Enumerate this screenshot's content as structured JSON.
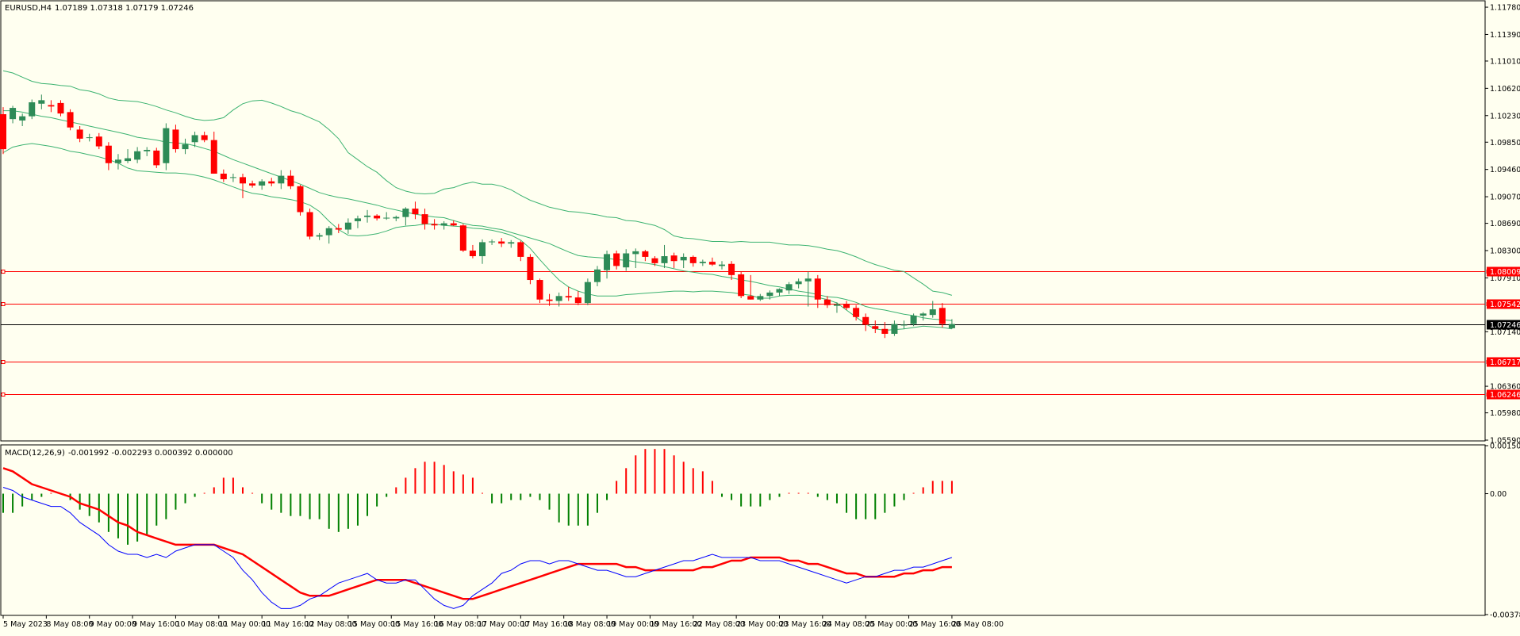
{
  "header": {
    "symbol_label": "EURUSD,H4",
    "ohlc": "1.07189 1.07318 1.07179 1.07246"
  },
  "macd_header": {
    "label": "MACD(12,26,9)",
    "values": "-0.001992 -0.002293 0.000392 0.000000"
  },
  "colors": {
    "background": "#fffff0",
    "bull": "#2e8b57",
    "bear": "#ff0000",
    "bands": "#3cb371",
    "hline": "#ff0000",
    "current_line": "#000000",
    "macd_line": "#0000ff",
    "signal_line": "#ff0000"
  },
  "price_axis_ticks": [
    "1.11780",
    "1.11390",
    "1.11010",
    "1.10620",
    "1.10230",
    "1.09850",
    "1.09460",
    "1.09070",
    "1.08690",
    "1.08300",
    "1.07910",
    "1.07140",
    "1.06360",
    "1.05980",
    "1.05590"
  ],
  "macd_axis_ticks": [
    "0.001504",
    "0.00",
    "-0.003789"
  ],
  "price_tags": [
    {
      "label": "1.08009",
      "value": 1.08009
    },
    {
      "label": "1.07542",
      "value": 1.07542
    },
    {
      "label": "1.06717",
      "value": 1.06717
    },
    {
      "label": "1.06246",
      "value": 1.06246
    }
  ],
  "current_price_tag": {
    "label": "1.07246",
    "value": 1.07246
  },
  "time_axis_labels": [
    "5 May 2023",
    "8 May 08:00",
    "9 May 00:00",
    "9 May 16:00",
    "10 May 08:00",
    "11 May 00:00",
    "11 May 16:00",
    "12 May 08:00",
    "15 May 00:00",
    "15 May 16:00",
    "16 May 08:00",
    "17 May 00:00",
    "17 May 16:00",
    "18 May 08:00",
    "19 May 00:00",
    "19 May 16:00",
    "22 May 08:00",
    "23 May 00:00",
    "23 May 16:00",
    "24 May 08:00",
    "25 May 00:00",
    "25 May 16:00",
    "26 May 08:00"
  ],
  "chart_data": {
    "type": "candlestick",
    "symbol": "EURUSD",
    "timeframe": "H4",
    "price_range": [
      1.0559,
      1.1186
    ],
    "candles": [
      [
        1.1025,
        1.1035,
        1.0968,
        1.0975
      ],
      [
        1.1018,
        1.1037,
        1.1012,
        1.1034
      ],
      [
        1.1016,
        1.1026,
        1.1008,
        1.1022
      ],
      [
        1.1022,
        1.1046,
        1.1018,
        1.1042
      ],
      [
        1.104,
        1.1053,
        1.1032,
        1.1045
      ],
      [
        1.1038,
        1.1045,
        1.1028,
        1.1036
      ],
      [
        1.1041,
        1.1045,
        1.1022,
        1.1026
      ],
      [
        1.1028,
        1.1032,
        1.1002,
        1.1006
      ],
      [
        1.1003,
        1.1008,
        1.0985,
        1.099
      ],
      [
        1.0991,
        1.0997,
        1.0986,
        1.0992
      ],
      [
        1.0993,
        1.0998,
        1.0975,
        1.0979
      ],
      [
        1.098,
        1.0985,
        1.0945,
        1.0955
      ],
      [
        1.0955,
        1.0968,
        1.0946,
        1.096
      ],
      [
        1.0958,
        1.0975,
        1.0955,
        1.0962
      ],
      [
        1.096,
        1.0978,
        1.0955,
        1.0972
      ],
      [
        1.0972,
        1.0978,
        1.0965,
        1.0974
      ],
      [
        1.0973,
        1.0977,
        1.0948,
        1.0952
      ],
      [
        1.0955,
        1.1012,
        1.0945,
        1.1005
      ],
      [
        1.1003,
        1.101,
        1.097,
        1.0975
      ],
      [
        1.0975,
        1.099,
        1.0968,
        1.0982
      ],
      [
        1.0985,
        1.1,
        1.0978,
        1.0995
      ],
      [
        1.0995,
        1.1,
        1.0985,
        1.0988
      ],
      [
        1.0988,
        1.1,
        1.094,
        1.094
      ],
      [
        1.094,
        1.0946,
        1.0928,
        1.0932
      ],
      [
        1.0935,
        1.094,
        1.0928,
        1.0935
      ],
      [
        1.0935,
        1.094,
        1.0905,
        1.0926
      ],
      [
        1.0926,
        1.093,
        1.092,
        1.0923
      ],
      [
        1.0923,
        1.0932,
        1.0917,
        1.0929
      ],
      [
        1.0929,
        1.0934,
        1.0922,
        1.0926
      ],
      [
        1.0926,
        1.0945,
        1.0918,
        1.0937
      ],
      [
        1.0937,
        1.0945,
        1.0918,
        1.0922
      ],
      [
        1.0922,
        1.0924,
        1.088,
        1.0885
      ],
      [
        1.0885,
        1.089,
        1.0846,
        1.085
      ],
      [
        1.085,
        1.0855,
        1.0845,
        1.0852
      ],
      [
        1.0852,
        1.0865,
        1.084,
        1.0862
      ],
      [
        1.0862,
        1.0868,
        1.0855,
        1.086
      ],
      [
        1.086,
        1.0876,
        1.0854,
        1.087
      ],
      [
        1.0872,
        1.088,
        1.0862,
        1.0876
      ],
      [
        1.0878,
        1.0888,
        1.087,
        1.088
      ],
      [
        1.088,
        1.0882,
        1.0873,
        1.0876
      ],
      [
        1.0876,
        1.0885,
        1.0874,
        1.0877
      ],
      [
        1.0876,
        1.088,
        1.0872,
        1.0878
      ],
      [
        1.0878,
        1.0892,
        1.0866,
        1.089
      ],
      [
        1.089,
        1.09,
        1.0875,
        1.0882
      ],
      [
        1.0882,
        1.089,
        1.086,
        1.0868
      ],
      [
        1.0868,
        1.0875,
        1.086,
        1.0866
      ],
      [
        1.0866,
        1.0872,
        1.086,
        1.0869
      ],
      [
        1.0869,
        1.0873,
        1.0865,
        1.0866
      ],
      [
        1.0866,
        1.0868,
        1.0828,
        1.083
      ],
      [
        1.083,
        1.0838,
        1.0819,
        1.0822
      ],
      [
        1.0822,
        1.0846,
        1.0811,
        1.0842
      ],
      [
        1.0842,
        1.0846,
        1.0838,
        1.0843
      ],
      [
        1.0843,
        1.0848,
        1.0835,
        1.084
      ],
      [
        1.084,
        1.0845,
        1.0834,
        1.0842
      ],
      [
        1.0842,
        1.0844,
        1.0815,
        1.0821
      ],
      [
        1.0821,
        1.0825,
        1.0782,
        1.0788
      ],
      [
        1.0788,
        1.079,
        1.0755,
        1.076
      ],
      [
        1.076,
        1.0768,
        1.0751,
        1.0758
      ],
      [
        1.0758,
        1.077,
        1.075,
        1.0765
      ],
      [
        1.0765,
        1.0778,
        1.0758,
        1.0763
      ],
      [
        1.0763,
        1.0772,
        1.0752,
        1.0755
      ],
      [
        1.0755,
        1.079,
        1.0752,
        1.0785
      ],
      [
        1.0785,
        1.0808,
        1.0779,
        1.0803
      ],
      [
        1.0802,
        1.083,
        1.079,
        1.0825
      ],
      [
        1.0826,
        1.083,
        1.0803,
        1.0808
      ],
      [
        1.0806,
        1.0832,
        1.0801,
        1.0826
      ],
      [
        1.0825,
        1.0833,
        1.0805,
        1.0829
      ],
      [
        1.0829,
        1.0831,
        1.0815,
        1.0821
      ],
      [
        1.0819,
        1.0822,
        1.0808,
        1.0812
      ],
      [
        1.0812,
        1.0838,
        1.0805,
        1.0822
      ],
      [
        1.0823,
        1.0827,
        1.0805,
        1.0815
      ],
      [
        1.0816,
        1.0826,
        1.0805,
        1.0821
      ],
      [
        1.0821,
        1.0823,
        1.0807,
        1.0812
      ],
      [
        1.0812,
        1.0817,
        1.0808,
        1.0814
      ],
      [
        1.0814,
        1.082,
        1.0808,
        1.081
      ],
      [
        1.0808,
        1.0815,
        1.0803,
        1.081
      ],
      [
        1.0811,
        1.0815,
        1.0788,
        1.0795
      ],
      [
        1.0796,
        1.08,
        1.0762,
        1.0765
      ],
      [
        1.0765,
        1.0795,
        1.076,
        1.076
      ],
      [
        1.076,
        1.0768,
        1.0758,
        1.0765
      ],
      [
        1.0765,
        1.0773,
        1.076,
        1.077
      ],
      [
        1.077,
        1.0776,
        1.0765,
        1.0775
      ],
      [
        1.0773,
        1.0785,
        1.0768,
        1.0782
      ],
      [
        1.0782,
        1.079,
        1.0776,
        1.0786
      ],
      [
        1.0786,
        1.08,
        1.075,
        1.079
      ],
      [
        1.079,
        1.0795,
        1.0748,
        1.076
      ],
      [
        1.076,
        1.0765,
        1.0748,
        1.0752
      ],
      [
        1.0751,
        1.0756,
        1.0741,
        1.0753
      ],
      [
        1.0753,
        1.0758,
        1.0745,
        1.0748
      ],
      [
        1.0748,
        1.0752,
        1.073,
        1.0735
      ],
      [
        1.0735,
        1.074,
        1.0715,
        1.0724
      ],
      [
        1.0722,
        1.073,
        1.0712,
        1.0718
      ],
      [
        1.0718,
        1.0728,
        1.0705,
        1.0711
      ],
      [
        1.0711,
        1.073,
        1.0708,
        1.0725
      ],
      [
        1.0723,
        1.073,
        1.0718,
        1.0724
      ],
      [
        1.0725,
        1.074,
        1.0722,
        1.0737
      ],
      [
        1.0737,
        1.0742,
        1.073,
        1.074
      ],
      [
        1.0738,
        1.0758,
        1.0734,
        1.0746
      ],
      [
        1.0748,
        1.0755,
        1.072,
        1.0725
      ],
      [
        1.0719,
        1.0732,
        1.0718,
        1.0725
      ]
    ],
    "bollinger": {
      "upper": [
        1.1087,
        1.1084,
        1.1078,
        1.1072,
        1.1069,
        1.1068,
        1.1066,
        1.1065,
        1.106,
        1.1058,
        1.1054,
        1.1048,
        1.1045,
        1.1044,
        1.1043,
        1.104,
        1.1036,
        1.1031,
        1.1027,
        1.1022,
        1.1018,
        1.1016,
        1.1017,
        1.102,
        1.1031,
        1.104,
        1.1044,
        1.1045,
        1.1041,
        1.1036,
        1.103,
        1.1026,
        1.102,
        1.1014,
        1.1003,
        1.099,
        1.097,
        1.096,
        1.095,
        1.0942,
        1.093,
        1.092,
        1.0915,
        1.0912,
        1.0911,
        1.0912,
        1.0918,
        1.092,
        1.0925,
        1.0928,
        1.0925,
        1.0925,
        1.0922,
        1.0917,
        1.0909,
        1.0902,
        1.0897,
        1.0892,
        1.0889,
        1.0886,
        1.0885,
        1.0883,
        1.0881,
        1.0878,
        1.0877,
        1.0873,
        1.0872,
        1.0869,
        1.0866,
        1.086,
        1.0851,
        1.0848,
        1.0847,
        1.0845,
        1.0843,
        1.0843,
        1.0842,
        1.0843,
        1.0842,
        1.0842,
        1.0842,
        1.084,
        1.0838,
        1.0838,
        1.0837,
        1.0835,
        1.0832,
        1.083,
        1.0826,
        1.0821,
        1.0815,
        1.081,
        1.0806,
        1.0802,
        1.08,
        1.0791,
        1.0782,
        1.0772,
        1.077,
        1.0766
      ],
      "middle": [
        1.103,
        1.103,
        1.1028,
        1.1025,
        1.1022,
        1.102,
        1.1017,
        1.1014,
        1.1011,
        1.1008,
        1.1005,
        1.1002,
        1.0999,
        1.0996,
        1.0992,
        1.099,
        1.0988,
        1.0985,
        1.0984,
        1.0983,
        1.098,
        1.0976,
        1.0972,
        1.0966,
        1.096,
        1.0955,
        1.095,
        1.0945,
        1.094,
        1.0935,
        1.093,
        1.0925,
        1.0919,
        1.0913,
        1.0909,
        1.0906,
        1.0904,
        1.0901,
        1.0898,
        1.0895,
        1.0891,
        1.0888,
        1.0885,
        1.0882,
        1.088,
        1.0878,
        1.0877,
        1.0873,
        1.0869,
        1.0866,
        1.0865,
        1.0862,
        1.086,
        1.0856,
        1.0852,
        1.0848,
        1.0844,
        1.084,
        1.0834,
        1.0828,
        1.0823,
        1.0821,
        1.082,
        1.0819,
        1.0817,
        1.0816,
        1.0814,
        1.0812,
        1.081,
        1.0807,
        1.0804,
        1.0801,
        1.0799,
        1.0797,
        1.0796,
        1.0793,
        1.0791,
        1.0788,
        1.0786,
        1.0783,
        1.078,
        1.0778,
        1.0775,
        1.0772,
        1.077,
        1.0767,
        1.0764,
        1.0763,
        1.076,
        1.0756,
        1.075,
        1.0747,
        1.0745,
        1.0742,
        1.0739,
        1.0737,
        1.0734,
        1.0732,
        1.0731,
        1.073
      ],
      "lower": [
        1.097,
        1.0978,
        1.0981,
        1.0983,
        1.0981,
        1.0979,
        1.0976,
        1.0972,
        1.097,
        1.0967,
        1.0964,
        1.096,
        1.0955,
        1.0948,
        1.0944,
        1.0943,
        1.0942,
        1.0941,
        1.0941,
        1.094,
        1.0938,
        1.0935,
        1.0931,
        1.0926,
        1.0921,
        1.0916,
        1.0912,
        1.091,
        1.0907,
        1.0905,
        1.0903,
        1.09,
        1.0895,
        1.0886,
        1.0872,
        1.086,
        1.0852,
        1.0851,
        1.0852,
        1.0854,
        1.0858,
        1.0863,
        1.0865,
        1.0866,
        1.0868,
        1.0868,
        1.0866,
        1.0865,
        1.0864,
        1.0862,
        1.0861,
        1.0859,
        1.0856,
        1.0852,
        1.0845,
        1.0833,
        1.0817,
        1.0802,
        1.0788,
        1.0778,
        1.0772,
        1.0768,
        1.0765,
        1.0765,
        1.0765,
        1.0767,
        1.0768,
        1.0769,
        1.077,
        1.0771,
        1.0772,
        1.0772,
        1.0771,
        1.0772,
        1.0772,
        1.0771,
        1.077,
        1.0768,
        1.0766,
        1.0762,
        1.0762,
        1.0765,
        1.0766,
        1.0766,
        1.0765,
        1.0763,
        1.076,
        1.0755,
        1.0745,
        1.0735,
        1.0725,
        1.0718,
        1.0716,
        1.0717,
        1.0718,
        1.072,
        1.0722,
        1.0721,
        1.072,
        1.0718
      ]
    },
    "horizontal_lines": [
      1.08009,
      1.07542,
      1.06717,
      1.06246
    ],
    "current_price": 1.07246,
    "macd_range": [
      -0.003789,
      0.001504
    ],
    "macd": {
      "histogram": [
        -0.0006,
        -0.0006,
        -0.0004,
        -0.0002,
        -0.0001,
        0.0,
        0.0,
        -0.0002,
        -0.0005,
        -0.0007,
        -0.0009,
        -0.0012,
        -0.0014,
        -0.0016,
        -0.0015,
        -0.0013,
        -0.001,
        -0.0008,
        -0.0005,
        -0.0003,
        -0.0001,
        0.0,
        0.0002,
        0.0005,
        0.0005,
        0.0002,
        0.0,
        -0.0003,
        -0.0005,
        -0.0006,
        -0.0007,
        -0.0007,
        -0.0008,
        -0.0008,
        -0.0011,
        -0.0012,
        -0.0011,
        -0.001,
        -0.0007,
        -0.0004,
        -0.0001,
        0.0002,
        0.0005,
        0.0008,
        0.001,
        0.001,
        0.0009,
        0.0007,
        0.0006,
        0.0005,
        0.0,
        -0.0003,
        -0.0003,
        -0.0002,
        -0.0002,
        -0.0001,
        -0.0002,
        -0.0005,
        -0.0009,
        -0.001,
        -0.001,
        -0.001,
        -0.0006,
        -0.0002,
        0.0004,
        0.0008,
        0.0012,
        0.0014,
        0.0014,
        0.0014,
        0.0012,
        0.001,
        0.0008,
        0.0007,
        0.0004,
        -0.0001,
        -0.0002,
        -0.0004,
        -0.0004,
        -0.0004,
        -0.0002,
        -0.0001,
        0.0,
        0.0,
        0.0,
        -0.0001,
        -0.0002,
        -0.0003,
        -0.0006,
        -0.0008,
        -0.0008,
        -0.0008,
        -0.0006,
        -0.0004,
        -0.0002,
        0.0,
        0.0002,
        0.0004,
        0.0004,
        0.0004
      ],
      "macd_line": [
        0.0002,
        0.0001,
        -0.0001,
        -0.0002,
        -0.0003,
        -0.0004,
        -0.0004,
        -0.0006,
        -0.0009,
        -0.0011,
        -0.0013,
        -0.0016,
        -0.0018,
        -0.0019,
        -0.0019,
        -0.002,
        -0.0019,
        -0.002,
        -0.0018,
        -0.0017,
        -0.0016,
        -0.0016,
        -0.0016,
        -0.0018,
        -0.002,
        -0.0024,
        -0.0027,
        -0.0031,
        -0.0034,
        -0.0036,
        -0.0036,
        -0.0035,
        -0.0033,
        -0.0032,
        -0.003,
        -0.0028,
        -0.0027,
        -0.0026,
        -0.0025,
        -0.0027,
        -0.0028,
        -0.0028,
        -0.0027,
        -0.0027,
        -0.003,
        -0.0033,
        -0.0035,
        -0.0036,
        -0.0035,
        -0.0032,
        -0.003,
        -0.0028,
        -0.0025,
        -0.0024,
        -0.0022,
        -0.0021,
        -0.0021,
        -0.0022,
        -0.0021,
        -0.0021,
        -0.0022,
        -0.0023,
        -0.0024,
        -0.0024,
        -0.0025,
        -0.0026,
        -0.0026,
        -0.0025,
        -0.0024,
        -0.0023,
        -0.0022,
        -0.0021,
        -0.0021,
        -0.002,
        -0.0019,
        -0.002,
        -0.002,
        -0.002,
        -0.002,
        -0.0021,
        -0.0021,
        -0.0021,
        -0.0022,
        -0.0023,
        -0.0024,
        -0.0025,
        -0.0026,
        -0.0027,
        -0.0028,
        -0.0027,
        -0.0026,
        -0.0026,
        -0.0025,
        -0.0024,
        -0.0024,
        -0.0023,
        -0.0023,
        -0.0022,
        -0.0021,
        -0.002
      ],
      "signal_line": [
        0.0008,
        0.0007,
        0.0005,
        0.0003,
        0.0002,
        0.0001,
        0.0,
        -0.0001,
        -0.0003,
        -0.0004,
        -0.0005,
        -0.0007,
        -0.0009,
        -0.001,
        -0.0012,
        -0.0013,
        -0.0014,
        -0.0015,
        -0.0016,
        -0.0016,
        -0.0016,
        -0.0016,
        -0.0016,
        -0.0017,
        -0.0018,
        -0.0019,
        -0.0021,
        -0.0023,
        -0.0025,
        -0.0027,
        -0.0029,
        -0.0031,
        -0.0032,
        -0.0032,
        -0.0032,
        -0.0031,
        -0.003,
        -0.0029,
        -0.0028,
        -0.0027,
        -0.0027,
        -0.0027,
        -0.0027,
        -0.0028,
        -0.0029,
        -0.003,
        -0.0031,
        -0.0032,
        -0.0033,
        -0.0033,
        -0.0032,
        -0.0031,
        -0.003,
        -0.0029,
        -0.0028,
        -0.0027,
        -0.0026,
        -0.0025,
        -0.0024,
        -0.0023,
        -0.0022,
        -0.0022,
        -0.0022,
        -0.0022,
        -0.0022,
        -0.0023,
        -0.0023,
        -0.0024,
        -0.0024,
        -0.0024,
        -0.0024,
        -0.0024,
        -0.0024,
        -0.0023,
        -0.0023,
        -0.0022,
        -0.0021,
        -0.0021,
        -0.002,
        -0.002,
        -0.002,
        -0.002,
        -0.0021,
        -0.0021,
        -0.0022,
        -0.0022,
        -0.0023,
        -0.0024,
        -0.0025,
        -0.0025,
        -0.0026,
        -0.0026,
        -0.0026,
        -0.0026,
        -0.0025,
        -0.0025,
        -0.0024,
        -0.0024,
        -0.0023,
        -0.0023
      ]
    }
  }
}
